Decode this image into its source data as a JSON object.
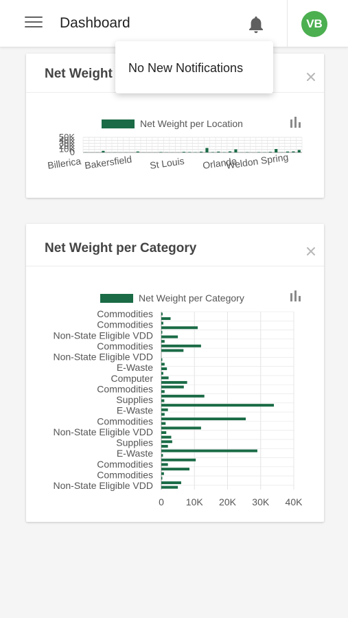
{
  "header": {
    "title": "Dashboard",
    "menu_icon": "hamburger-menu-icon",
    "notifications_icon": "bell-icon",
    "avatar_initials": "VB",
    "avatar_color": "#4caf50"
  },
  "notifications": {
    "message": "No New Notifications"
  },
  "cards": {
    "location": {
      "title": "Net Weight per Location"
    },
    "category": {
      "title": "Net Weight per Category"
    }
  },
  "colors": {
    "bar": "#1a6b46",
    "grid": "#e4e4e4",
    "axis_text": "#555555"
  },
  "chart_data": [
    {
      "type": "bar",
      "orientation": "vertical",
      "legend": "Net Weight per Location",
      "legend_position": "top",
      "y_tick_labels": [
        "50K",
        "40K",
        "30K",
        "20K",
        "10K",
        "0"
      ],
      "ylim": [
        0,
        50000
      ],
      "grid": true,
      "x_tick_labels": [
        "Billerica",
        "Bakersfield",
        "St Louis",
        "Orlando",
        "Weldon Spring"
      ],
      "values": [
        600,
        300,
        400,
        5200,
        300,
        500,
        300,
        500,
        300,
        3100,
        400,
        300,
        300,
        1500,
        600,
        400,
        300,
        2200,
        1400,
        1000,
        2500,
        14800,
        1300,
        2800,
        1000,
        3500,
        10300,
        400,
        1200,
        300,
        1300,
        700,
        2000,
        11400,
        600,
        3000,
        3400,
        8000
      ]
    },
    {
      "type": "bar",
      "orientation": "horizontal",
      "legend": "Net Weight per Category",
      "legend_position": "top",
      "xlim": [
        0,
        40000
      ],
      "x_tick_labels": [
        "0",
        "10K",
        "20K",
        "30K",
        "40K"
      ],
      "grid": true,
      "category_labels": [
        "Commodities",
        "Commodities",
        "Non-State Eligible VDD",
        "Commodities",
        "Non-State Eligible VDD",
        "E-Waste",
        "Computer",
        "Commodities",
        "Supplies",
        "E-Waste",
        "Commodities",
        "Non-State Eligible VDD",
        "Supplies",
        "E-Waste",
        "Commodities",
        "Commodities",
        "Non-State Eligible VDD"
      ],
      "values": [
        400,
        2800,
        600,
        11000,
        300,
        5000,
        1000,
        12000,
        6700,
        0,
        300,
        1000,
        1700,
        600,
        2200,
        7800,
        6800,
        1000,
        13000,
        900,
        34000,
        2000,
        1000,
        25500,
        1300,
        12000,
        1500,
        3000,
        3300,
        2000,
        29000,
        500,
        10400,
        2000,
        8500,
        800,
        300,
        6000,
        5000
      ]
    }
  ]
}
